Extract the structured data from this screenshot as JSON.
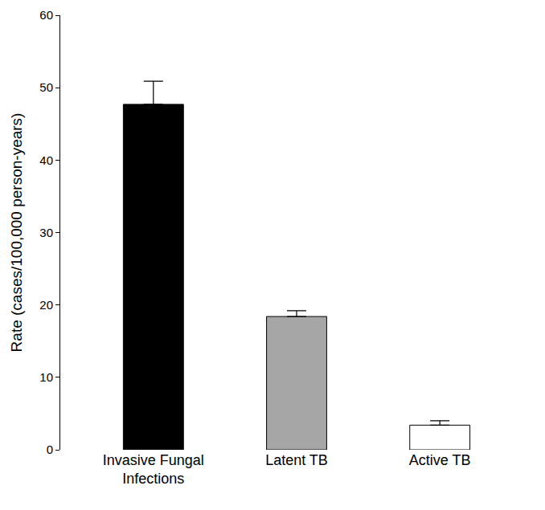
{
  "chart_data": {
    "type": "bar",
    "y_label": "Rate (cases/100,000 person-years)",
    "categories": [
      "Invasive Fungal Infections",
      "Latent TB",
      "Active TB"
    ],
    "values": [
      47.7,
      18.4,
      3.4
    ],
    "error": [
      3.2,
      0.8,
      0.6
    ],
    "colors": [
      "#000000",
      "#a6a6a6",
      "#ffffff"
    ],
    "ylim": [
      0,
      60
    ],
    "yticks": [
      0,
      10,
      20,
      30,
      40,
      50,
      60
    ],
    "grid": false
  }
}
